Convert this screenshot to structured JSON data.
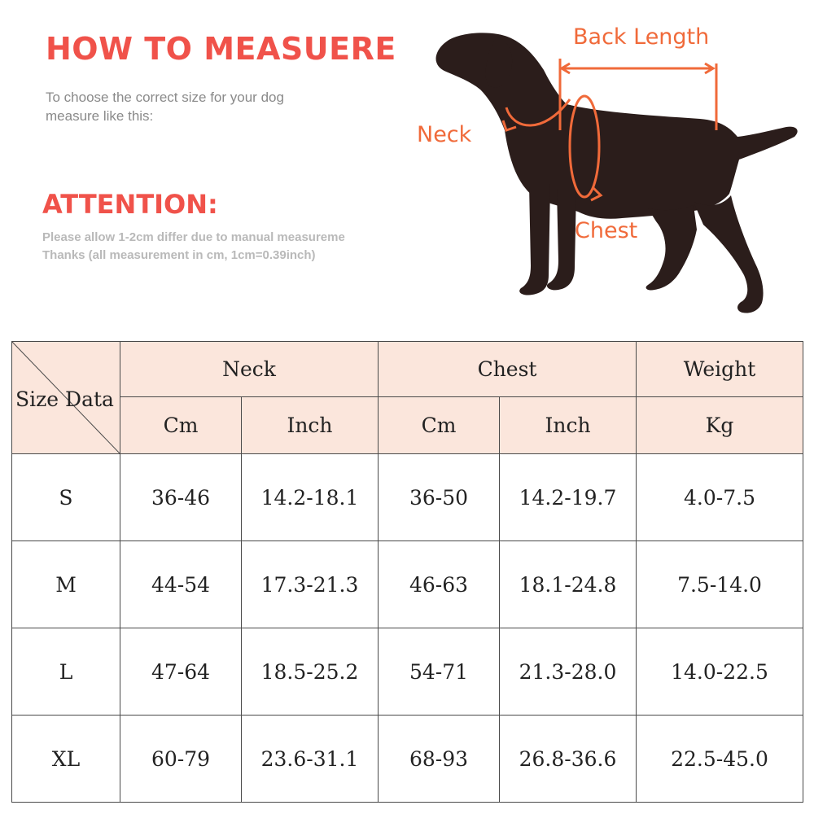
{
  "guide": {
    "title": "HOW TO MEASUERE",
    "subtitle": "To choose the correct size for your dog measure like this:",
    "attention_title": "ATTENTION:",
    "attention_line1": "Please allow 1-2cm differ due to manual measureme",
    "attention_line2": "Thanks (all measurement in cm, 1cm=0.39inch)"
  },
  "dog_diagram": {
    "labels": {
      "back_length": "Back Length",
      "neck": "Neck",
      "chest": "Chest"
    },
    "silhouette_color": "#2b1d1b",
    "marker_color": "#f06a3a"
  },
  "table": {
    "corner_label": "Size Data",
    "groups": [
      "Neck",
      "Chest",
      "Weight"
    ],
    "units": [
      "Cm",
      "Inch",
      "Cm",
      "Inch",
      "Kg"
    ],
    "rows": [
      {
        "size": "S",
        "cells": [
          "36-46",
          "14.2-18.1",
          "36-50",
          "14.2-19.7",
          "4.0-7.5"
        ]
      },
      {
        "size": "M",
        "cells": [
          "44-54",
          "17.3-21.3",
          "46-63",
          "18.1-24.8",
          "7.5-14.0"
        ]
      },
      {
        "size": "L",
        "cells": [
          "47-64",
          "18.5-25.2",
          "54-71",
          "21.3-28.0",
          "14.0-22.5"
        ]
      },
      {
        "size": "XL",
        "cells": [
          "60-79",
          "23.6-31.1",
          "68-93",
          "26.8-36.6",
          "22.5-45.0"
        ]
      }
    ],
    "header_bg": "#fbe6dc"
  }
}
